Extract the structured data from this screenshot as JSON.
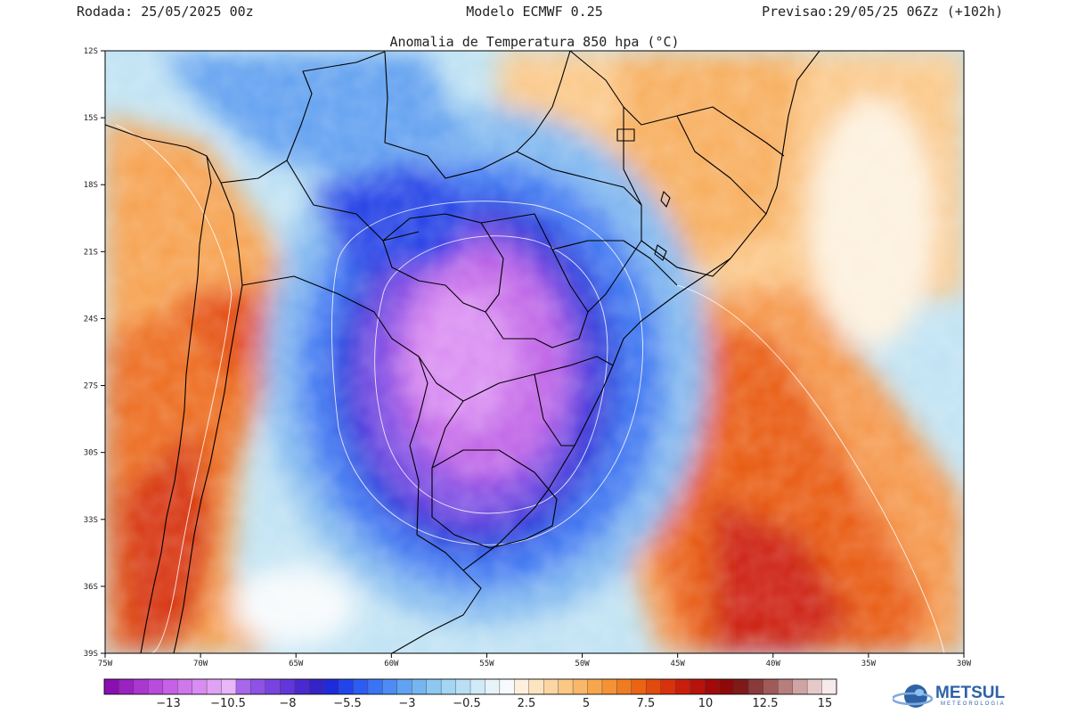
{
  "header": {
    "run": "Rodada: 25/05/2025 00z",
    "model": "Modelo ECMWF 0.25",
    "forecast": "Previsao:29/05/25 06Zz (+102h)"
  },
  "map": {
    "title": "Anomalia de Temperatura 850 hpa (°C)",
    "lat_ticks": [
      "12S",
      "15S",
      "18S",
      "21S",
      "24S",
      "27S",
      "30S",
      "33S",
      "36S",
      "39S"
    ],
    "lon_ticks": [
      "75W",
      "70W",
      "65W",
      "60W",
      "55W",
      "50W",
      "45W",
      "40W",
      "35W",
      "30W"
    ],
    "extent": {
      "lon_min": -75,
      "lon_max": -30,
      "lat_min": -39,
      "lat_max": -12
    }
  },
  "colorbar": {
    "labels": [
      "−13",
      "−10.5",
      "−8",
      "−5.5",
      "−3",
      "−0.5",
      "2.5",
      "5",
      "7.5",
      "10",
      "12.5",
      "15"
    ],
    "colors": [
      "#8a0fb0",
      "#9a22c0",
      "#ab36d0",
      "#bb4ade",
      "#c660e6",
      "#d077ec",
      "#d98cf1",
      "#e0a2f5",
      "#e7b7f8",
      "#a866ea",
      "#8f52e6",
      "#7844e0",
      "#6236d8",
      "#4a2ad0",
      "#3424c8",
      "#1e2adc",
      "#2244ec",
      "#2c5cf2",
      "#3a74f4",
      "#4e8cf4",
      "#62a2f2",
      "#76b6f0",
      "#8cc8f0",
      "#a2d6f2",
      "#badff4",
      "#d0eaf7",
      "#e6f3fa",
      "#f6fafc",
      "#fdf1de",
      "#fde4c0",
      "#fcd6a2",
      "#fbc784",
      "#f9b768",
      "#f7a64e",
      "#f49236",
      "#f07c22",
      "#ea6414",
      "#e24a0e",
      "#d8320c",
      "#ca1e0c",
      "#b8120c",
      "#a20a0a",
      "#8e0a0a",
      "#7e1a1a",
      "#8a3a3a",
      "#a05a5a",
      "#b87e7e",
      "#d0a4a4",
      "#e6caca",
      "#f6eaea"
    ]
  },
  "logo": {
    "name": "METSUL",
    "sub": "METEOROLOGIA"
  }
}
